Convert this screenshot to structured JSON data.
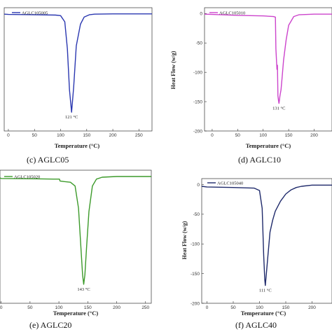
{
  "chart_data": [
    {
      "type": "line",
      "caption": "(c) AGLC05",
      "xlabel": "Temperature (°C)",
      "ylabel": "",
      "xlim": [
        -8,
        275
      ],
      "ylim": [
        -200,
        10
      ],
      "xticks": [
        0,
        50,
        100,
        150,
        200,
        250
      ],
      "xtick_labels": [
        "0",
        "50",
        "100",
        "150",
        "200",
        "250"
      ],
      "yticks": [],
      "ytick_labels": [],
      "legend": "AGLC105005",
      "peak_label": "121 °C",
      "peak": [
        121,
        -168
      ],
      "color": "#2a37b0",
      "series": [
        {
          "name": "AGLC105005",
          "x": [
            -8,
            0,
            50,
            90,
            100,
            108,
            113,
            117,
            121,
            125,
            130,
            138,
            145,
            155,
            165,
            200,
            275
          ],
          "y": [
            -1,
            -1.5,
            -2,
            -2.5,
            -3.5,
            -14,
            -60,
            -130,
            -168,
            -125,
            -55,
            -18,
            -6,
            -2,
            -1,
            -0.5,
            -0.5
          ]
        }
      ]
    },
    {
      "type": "line",
      "caption": "(d) AGLC10",
      "xlabel": "Temperature (°C)",
      "ylabel": "Heat Flow (w/g)",
      "xlim": [
        -15,
        235
      ],
      "ylim": [
        -200,
        10
      ],
      "xticks": [
        0,
        50,
        100,
        150,
        200
      ],
      "xtick_labels": [
        "0",
        "50",
        "100",
        "150",
        "200"
      ],
      "yticks": [
        0,
        -50,
        -100,
        -150,
        -200
      ],
      "ytick_labels": [
        "0",
        "-50",
        "-100",
        "-150",
        "-200"
      ],
      "legend": "AGLC105010",
      "peak_label": "131 °C",
      "peak": [
        131,
        -153
      ],
      "color": "#cc44cc",
      "series": [
        {
          "name": "AGLC105010",
          "x": [
            -15,
            0,
            50,
            100,
            120,
            124,
            125,
            127,
            128,
            129,
            130,
            131,
            132,
            133,
            135,
            137,
            140,
            145,
            150,
            160,
            170,
            200,
            235
          ],
          "y": [
            -1,
            -1.5,
            -3,
            -4,
            -5,
            -6,
            -60,
            -95,
            -88,
            -140,
            -148,
            -153,
            -147,
            -140,
            -130,
            -110,
            -80,
            -45,
            -20,
            -5,
            -2,
            -1,
            -1
          ]
        }
      ]
    },
    {
      "type": "line",
      "caption": "(e) AGLC20",
      "xlabel": "Temperature (°C)",
      "ylabel": "",
      "xlim": [
        -2,
        260
      ],
      "ylim": [
        -200,
        10
      ],
      "xticks": [
        0,
        50,
        100,
        150,
        200,
        250
      ],
      "xtick_labels": [
        "0",
        "50",
        "100",
        "150",
        "200",
        "250"
      ],
      "yticks": [],
      "ytick_labels": [],
      "legend": "AGLC105020",
      "peak_label": "143 °C",
      "peak": [
        143,
        -170
      ],
      "color": "#3c9a2a",
      "series": [
        {
          "name": "AGLC105020",
          "x": [
            -2,
            0,
            50,
            90,
            101,
            102,
            110,
            120,
            128,
            134,
            138,
            141,
            143,
            145,
            148,
            152,
            158,
            165,
            175,
            200,
            260
          ],
          "y": [
            -2,
            -3,
            -3.5,
            -4,
            -4,
            -7,
            -8,
            -9,
            -15,
            -50,
            -110,
            -155,
            -170,
            -155,
            -110,
            -55,
            -15,
            -4,
            -1,
            0,
            0
          ]
        }
      ]
    },
    {
      "type": "line",
      "caption": "(f) AGLC40",
      "xlabel": "Temperature (°C)",
      "ylabel": "Heat Flow (w/g)",
      "xlim": [
        -10,
        238
      ],
      "ylim": [
        -200,
        10
      ],
      "xticks": [
        0,
        50,
        100,
        150,
        200
      ],
      "xtick_labels": [
        "0",
        "50",
        "100",
        "150",
        "200"
      ],
      "yticks": [
        0,
        -50,
        -100,
        -150,
        -200
      ],
      "ytick_labels": [
        "0",
        "-50",
        "-100",
        "-150",
        "-200"
      ],
      "legend": "AGLC105040",
      "peak_label": "111 °C",
      "peak": [
        111,
        -170
      ],
      "color": "#1f2a6b",
      "series": [
        {
          "name": "AGLC105040",
          "x": [
            -10,
            0,
            50,
            90,
            100,
            105,
            108,
            110,
            111,
            113,
            116,
            120,
            125,
            130,
            140,
            150,
            160,
            170,
            180,
            200,
            238
          ],
          "y": [
            -3,
            -4,
            -5,
            -6,
            -10,
            -40,
            -120,
            -160,
            -170,
            -150,
            -120,
            -80,
            -60,
            -45,
            -28,
            -16,
            -9,
            -5,
            -3,
            -1,
            -1
          ]
        }
      ]
    }
  ]
}
